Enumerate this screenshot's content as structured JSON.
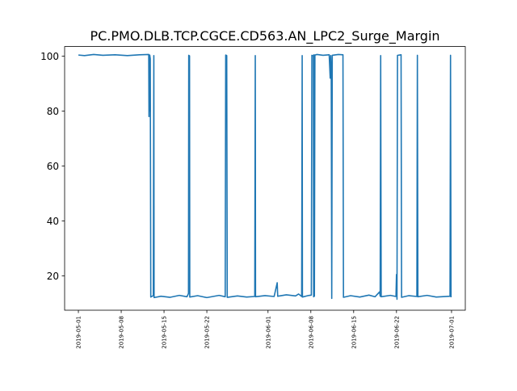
{
  "chart_data": {
    "type": "line",
    "title": "PC.PMO.DLB.TCP.CGCE.CD563.AN_LPC2_Surge_Margin",
    "xlabel": "",
    "ylabel": "",
    "x_range": [
      "2019-04-28T18:00",
      "2019-07-03T06:00"
    ],
    "ylim": [
      7.5,
      103.5
    ],
    "grid": false,
    "line_color": "#1f77b4",
    "xticks": [
      "2019-05-01",
      "2019-05-08",
      "2019-05-15",
      "2019-05-22",
      "2019-06-01",
      "2019-06-08",
      "2019-06-15",
      "2019-06-22",
      "2019-07-01"
    ],
    "yticks": [
      20,
      40,
      60,
      80,
      100
    ],
    "series": [
      {
        "points": [
          [
            "2019-05-01T00:00",
            100.4
          ],
          [
            "2019-05-02T00:00",
            100.2
          ],
          [
            "2019-05-03T12:00",
            100.6
          ],
          [
            "2019-05-05T00:00",
            100.3
          ],
          [
            "2019-05-07T00:00",
            100.5
          ],
          [
            "2019-05-09T00:00",
            100.2
          ],
          [
            "2019-05-11T00:00",
            100.5
          ],
          [
            "2019-05-12T12:00",
            100.6
          ],
          [
            "2019-05-12T13:00",
            78
          ],
          [
            "2019-05-12T14:00",
            100.2
          ],
          [
            "2019-05-12T15:00",
            80
          ],
          [
            "2019-05-12T16:00",
            100.4
          ],
          [
            "2019-05-12T18:00",
            99
          ],
          [
            "2019-05-12T20:00",
            12.3
          ],
          [
            "2019-05-13T06:00",
            12.8
          ],
          [
            "2019-05-13T08:00",
            100.2
          ],
          [
            "2019-05-13T09:00",
            12.1
          ],
          [
            "2019-05-14T12:00",
            12.6
          ],
          [
            "2019-05-16T00:00",
            12.2
          ],
          [
            "2019-05-17T12:00",
            12.9
          ],
          [
            "2019-05-18T18:00",
            12.4
          ],
          [
            "2019-05-19T00:00",
            13.6
          ],
          [
            "2019-05-19T01:00",
            100.3
          ],
          [
            "2019-05-19T04:00",
            100.1
          ],
          [
            "2019-05-19T05:00",
            12.3
          ],
          [
            "2019-05-20T12:00",
            12.8
          ],
          [
            "2019-05-22T00:00",
            12.1
          ],
          [
            "2019-05-24T00:00",
            12.9
          ],
          [
            "2019-05-25T00:00",
            12.4
          ],
          [
            "2019-05-25T02:00",
            100.4
          ],
          [
            "2019-05-25T06:00",
            100.2
          ],
          [
            "2019-05-25T08:00",
            12.2
          ],
          [
            "2019-05-27T00:00",
            12.7
          ],
          [
            "2019-05-28T12:00",
            12.3
          ],
          [
            "2019-05-29T20:00",
            12.5
          ],
          [
            "2019-05-29T22:00",
            100.2
          ],
          [
            "2019-05-29T23:00",
            12.4
          ],
          [
            "2019-05-31T12:00",
            12.8
          ],
          [
            "2019-06-02T00:00",
            12.5
          ],
          [
            "2019-06-02T12:00",
            17.5
          ],
          [
            "2019-06-02T14:00",
            12.6
          ],
          [
            "2019-06-04T00:00",
            13.1
          ],
          [
            "2019-06-05T12:00",
            12.7
          ],
          [
            "2019-06-06T00:00",
            13.4
          ],
          [
            "2019-06-06T12:00",
            12.5
          ],
          [
            "2019-06-06T14:00",
            100.2
          ],
          [
            "2019-06-06T15:00",
            12.3
          ],
          [
            "2019-06-07T12:00",
            12.8
          ],
          [
            "2019-06-08T02:00",
            13.0
          ],
          [
            "2019-06-08T04:00",
            100.3
          ],
          [
            "2019-06-08T10:00",
            100.1
          ],
          [
            "2019-06-08T11:00",
            12.4
          ],
          [
            "2019-06-08T12:00",
            100.5
          ],
          [
            "2019-06-08T14:00",
            12.6
          ],
          [
            "2019-06-08T16:00",
            100.4
          ],
          [
            "2019-06-09T00:00",
            100.6
          ],
          [
            "2019-06-10T00:00",
            100.3
          ],
          [
            "2019-06-11T00:00",
            100.5
          ],
          [
            "2019-06-11T04:00",
            92
          ],
          [
            "2019-06-11T06:00",
            100.2
          ],
          [
            "2019-06-11T08:00",
            95
          ],
          [
            "2019-06-11T10:00",
            11.8
          ],
          [
            "2019-06-11T12:00",
            100.3
          ],
          [
            "2019-06-12T12:00",
            100.6
          ],
          [
            "2019-06-13T06:00",
            100.5
          ],
          [
            "2019-06-13T08:00",
            12.2
          ],
          [
            "2019-06-14T12:00",
            12.8
          ],
          [
            "2019-06-16T00:00",
            12.3
          ],
          [
            "2019-06-17T12:00",
            13.0
          ],
          [
            "2019-06-18T12:00",
            12.4
          ],
          [
            "2019-06-19T06:00",
            14.2
          ],
          [
            "2019-06-19T08:00",
            12.6
          ],
          [
            "2019-06-19T10:00",
            100.2
          ],
          [
            "2019-06-19T12:00",
            12.4
          ],
          [
            "2019-06-21T00:00",
            12.9
          ],
          [
            "2019-06-21T22:00",
            12.5
          ],
          [
            "2019-06-22T00:00",
            20.5
          ],
          [
            "2019-06-22T02:00",
            11.5
          ],
          [
            "2019-06-22T04:00",
            100.3
          ],
          [
            "2019-06-22T18:00",
            100.5
          ],
          [
            "2019-06-22T20:00",
            12.2
          ],
          [
            "2019-06-24T00:00",
            12.8
          ],
          [
            "2019-06-25T08:00",
            12.5
          ],
          [
            "2019-06-25T10:00",
            100.3
          ],
          [
            "2019-06-25T12:00",
            12.4
          ],
          [
            "2019-06-27T00:00",
            12.9
          ],
          [
            "2019-06-28T12:00",
            12.3
          ],
          [
            "2019-06-30T18:00",
            12.6
          ],
          [
            "2019-06-30T20:00",
            100.3
          ],
          [
            "2019-06-30T22:00",
            12.2
          ]
        ]
      }
    ]
  }
}
